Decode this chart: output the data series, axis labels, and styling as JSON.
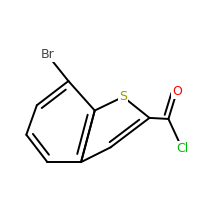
{
  "background_color": "#ffffff",
  "bond_color": "#000000",
  "atom_colors": {
    "S": "#9B9B00",
    "O": "#FF0000",
    "Cl": "#00BB00",
    "Br": "#444444",
    "C": "#000000"
  },
  "figsize": [
    2.0,
    2.0
  ],
  "dpi": 100,
  "lw": 1.4
}
